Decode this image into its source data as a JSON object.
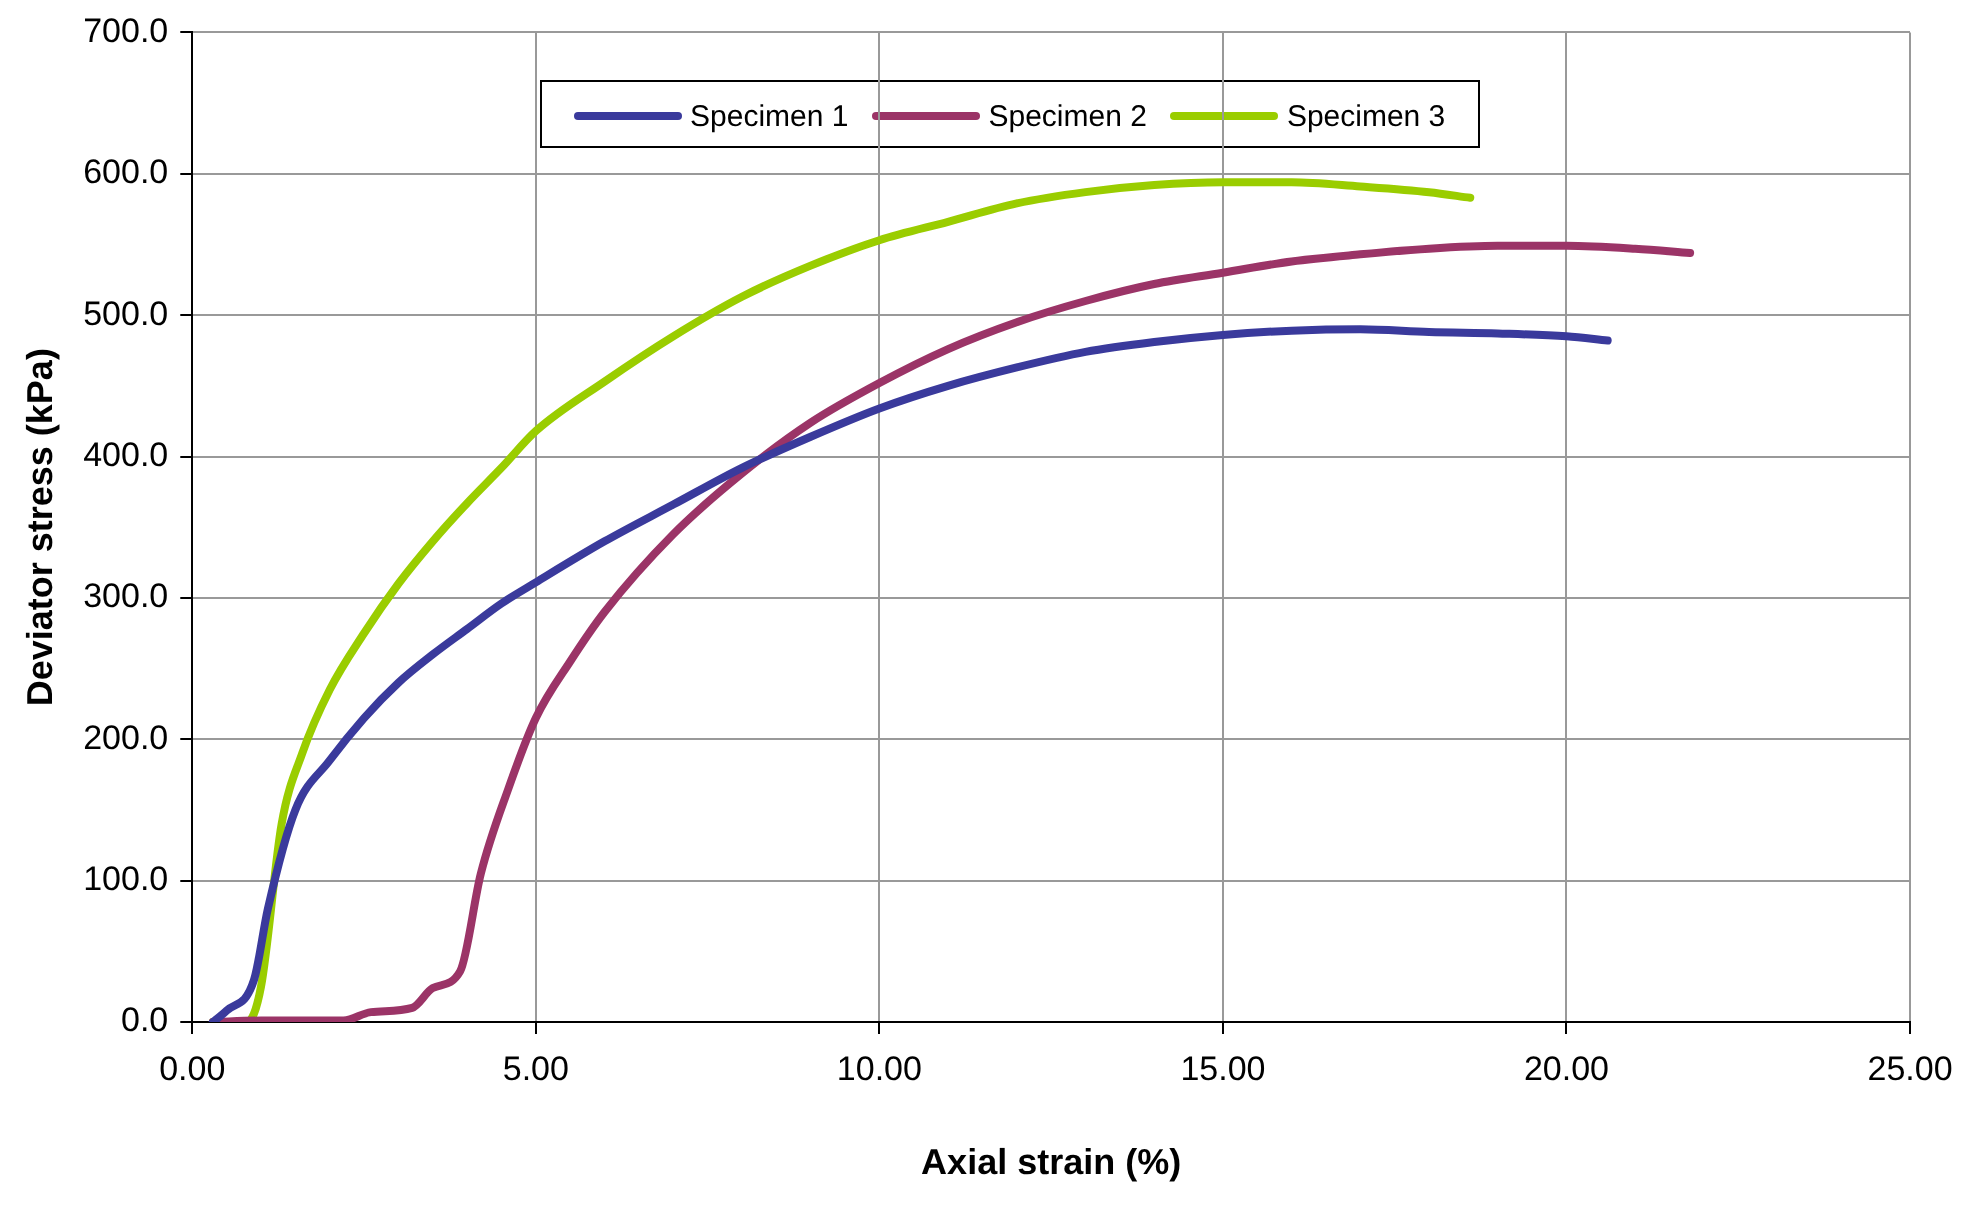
{
  "chart_data": {
    "type": "line",
    "xlabel": "Axial strain (%)",
    "ylabel": "Deviator stress (kPa)",
    "xlim": [
      0,
      25
    ],
    "xticks": [
      {
        "value": 0,
        "label": "0.00"
      },
      {
        "value": 5,
        "label": "5.00"
      },
      {
        "value": 10,
        "label": "10.00"
      },
      {
        "value": 15,
        "label": "15.00"
      },
      {
        "value": 20,
        "label": "20.00"
      },
      {
        "value": 25,
        "label": "25.00"
      }
    ],
    "ylim": [
      0,
      700
    ],
    "yticks": [
      {
        "value": 0,
        "label": "0.0"
      },
      {
        "value": 100,
        "label": "100.0"
      },
      {
        "value": 200,
        "label": "200.0"
      },
      {
        "value": 300,
        "label": "300.0"
      },
      {
        "value": 400,
        "label": "400.0"
      },
      {
        "value": 500,
        "label": "500.0"
      },
      {
        "value": 600,
        "label": "600.0"
      },
      {
        "value": 700,
        "label": "700.0"
      }
    ],
    "grid": true,
    "legend": "top",
    "marker": "none",
    "line_style": "solid",
    "series": [
      {
        "name": "Specimen 1",
        "color": "#3a3a9c",
        "x": [
          0.3,
          0.5,
          0.9,
          1.1,
          1.5,
          2,
          2.5,
          3,
          3.5,
          4,
          4.5,
          5,
          6,
          7,
          8,
          9,
          10,
          11,
          12,
          13,
          14,
          15,
          16,
          17,
          18,
          19,
          20,
          20.6
        ],
        "values": [
          0,
          8,
          30,
          80,
          150,
          185,
          215,
          240,
          260,
          278,
          296,
          311,
          340,
          366,
          392,
          414,
          434,
          450,
          463,
          474,
          481,
          486,
          489,
          490,
          488,
          487,
          485,
          482
        ]
      },
      {
        "name": "Specimen 2",
        "color": "#9b3467",
        "x": [
          0.3,
          1,
          2.2,
          2.6,
          3.2,
          3.5,
          3.9,
          4.2,
          4.6,
          5,
          5.5,
          6,
          7,
          8,
          9,
          10,
          11,
          12,
          13,
          14,
          15,
          16,
          17,
          18,
          19,
          20,
          21,
          21.8
        ],
        "values": [
          0,
          1,
          1,
          7,
          10,
          24,
          36,
          105,
          165,
          215,
          255,
          290,
          345,
          388,
          424,
          452,
          476,
          495,
          510,
          522,
          530,
          538,
          543,
          547,
          549,
          549,
          547,
          544
        ]
      },
      {
        "name": "Specimen 3",
        "color": "#9acd00",
        "x": [
          0.3,
          0.8,
          1,
          1.3,
          1.6,
          2,
          2.5,
          3,
          3.5,
          4,
          4.5,
          5,
          6,
          7,
          8,
          9,
          10,
          11,
          12,
          13,
          14,
          15,
          16,
          17,
          18,
          18.6
        ],
        "values": [
          0,
          0,
          25,
          140,
          190,
          235,
          275,
          310,
          340,
          367,
          392,
          418,
          453,
          485,
          513,
          535,
          553,
          566,
          579,
          587,
          592,
          594,
          594,
          591,
          587,
          583
        ]
      }
    ]
  }
}
